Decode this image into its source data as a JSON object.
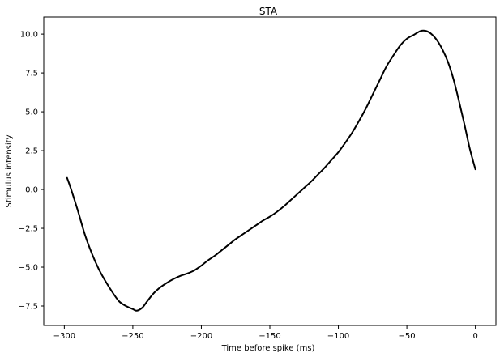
{
  "chart_data": {
    "type": "line",
    "title": "STA",
    "xlabel": "Time before spike (ms)",
    "ylabel": "Stimulus intensity",
    "xlim": [
      -315,
      15
    ],
    "ylim": [
      -8.75,
      11.1
    ],
    "xticks": [
      -300,
      -250,
      -200,
      -150,
      -100,
      -50,
      0
    ],
    "xtick_labels": [
      "−300",
      "−250",
      "−200",
      "−150",
      "−100",
      "−50",
      "0"
    ],
    "yticks": [
      -7.5,
      -5.0,
      -2.5,
      0.0,
      2.5,
      5.0,
      7.5,
      10.0
    ],
    "ytick_labels": [
      "−7.5",
      "−5.0",
      "−2.5",
      "0.0",
      "2.5",
      "5.0",
      "7.5",
      "10.0"
    ],
    "grid": false,
    "series": [
      {
        "color": "#000000",
        "points": [
          [
            -298,
            0.75
          ],
          [
            -295,
            0.0
          ],
          [
            -290,
            -1.4
          ],
          [
            -285,
            -2.9
          ],
          [
            -280,
            -4.1
          ],
          [
            -275,
            -5.1
          ],
          [
            -270,
            -5.9
          ],
          [
            -265,
            -6.6
          ],
          [
            -260,
            -7.2
          ],
          [
            -255,
            -7.5
          ],
          [
            -250,
            -7.7
          ],
          [
            -247,
            -7.8
          ],
          [
            -243,
            -7.6
          ],
          [
            -240,
            -7.25
          ],
          [
            -235,
            -6.7
          ],
          [
            -230,
            -6.3
          ],
          [
            -225,
            -6.0
          ],
          [
            -220,
            -5.75
          ],
          [
            -215,
            -5.55
          ],
          [
            -210,
            -5.4
          ],
          [
            -205,
            -5.2
          ],
          [
            -200,
            -4.9
          ],
          [
            -195,
            -4.55
          ],
          [
            -190,
            -4.25
          ],
          [
            -185,
            -3.9
          ],
          [
            -180,
            -3.55
          ],
          [
            -175,
            -3.2
          ],
          [
            -170,
            -2.9
          ],
          [
            -165,
            -2.6
          ],
          [
            -160,
            -2.3
          ],
          [
            -155,
            -2.0
          ],
          [
            -150,
            -1.75
          ],
          [
            -145,
            -1.45
          ],
          [
            -140,
            -1.1
          ],
          [
            -135,
            -0.7
          ],
          [
            -130,
            -0.3
          ],
          [
            -125,
            0.1
          ],
          [
            -120,
            0.5
          ],
          [
            -115,
            0.95
          ],
          [
            -110,
            1.4
          ],
          [
            -105,
            1.9
          ],
          [
            -100,
            2.4
          ],
          [
            -95,
            3.0
          ],
          [
            -90,
            3.65
          ],
          [
            -85,
            4.4
          ],
          [
            -80,
            5.2
          ],
          [
            -75,
            6.1
          ],
          [
            -70,
            7.0
          ],
          [
            -65,
            7.9
          ],
          [
            -60,
            8.6
          ],
          [
            -55,
            9.25
          ],
          [
            -50,
            9.7
          ],
          [
            -45,
            9.95
          ],
          [
            -40,
            10.2
          ],
          [
            -36,
            10.2
          ],
          [
            -32,
            10.0
          ],
          [
            -28,
            9.6
          ],
          [
            -24,
            9.0
          ],
          [
            -20,
            8.2
          ],
          [
            -16,
            7.1
          ],
          [
            -12,
            5.7
          ],
          [
            -8,
            4.2
          ],
          [
            -4,
            2.6
          ],
          [
            0,
            1.3
          ]
        ]
      }
    ]
  }
}
